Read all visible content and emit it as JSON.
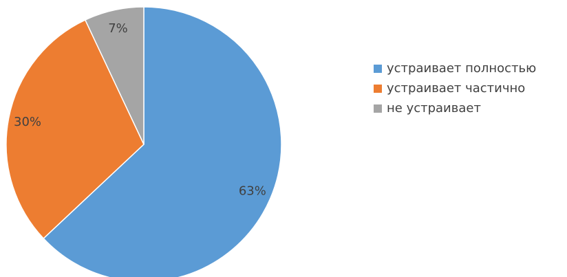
{
  "chart_data": {
    "type": "pie",
    "categories": [
      "устраивает полностью",
      "устраивает частично",
      "не устраивает"
    ],
    "values": [
      63,
      30,
      7
    ],
    "value_labels": [
      "63%",
      "30%",
      "7%"
    ],
    "colors": [
      "#5b9bd5",
      "#ed7d31",
      "#a5a5a5"
    ],
    "legend": "right"
  }
}
